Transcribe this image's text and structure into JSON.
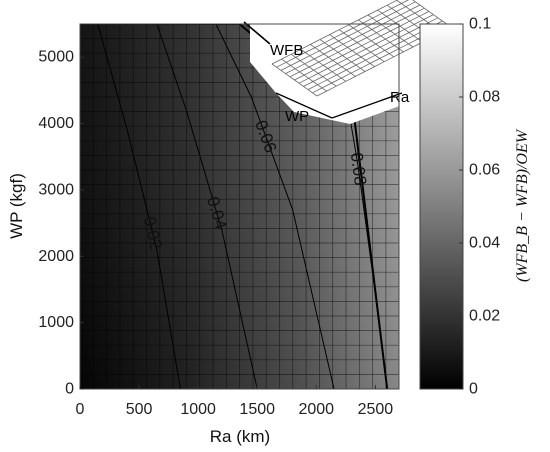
{
  "chart_data": {
    "type": "heatmap",
    "x_variable": "Ra",
    "y_variable": "WP",
    "xlabel": "Ra (km)",
    "ylabel": "WP (kgf)",
    "xlim": [
      0,
      2700
    ],
    "ylim": [
      0,
      5500
    ],
    "xticks": [
      0,
      500,
      1000,
      1500,
      2000,
      2500
    ],
    "yticks": [
      0,
      1000,
      2000,
      3000,
      4000,
      5000
    ],
    "colorbar": {
      "label": "(WFB_B − WFB)/OEW",
      "range": [
        0,
        0.1
      ],
      "ticks": [
        0,
        0.02,
        0.04,
        0.06,
        0.08,
        0.1
      ],
      "colormap": "gray",
      "low_color": "#000000",
      "high_color": "#ffffff"
    },
    "grid": true,
    "contours": [
      {
        "level": 0.02,
        "label": "0.02",
        "points": [
          [
            150,
            5500
          ],
          [
            400,
            3900
          ],
          [
            650,
            2100
          ],
          [
            850,
            0
          ]
        ]
      },
      {
        "level": 0.04,
        "label": "0.04",
        "points": [
          [
            650,
            5500
          ],
          [
            900,
            4200
          ],
          [
            1200,
            2400
          ],
          [
            1500,
            0
          ]
        ]
      },
      {
        "level": 0.06,
        "label": "0.06",
        "points": [
          [
            1150,
            5500
          ],
          [
            1450,
            4400
          ],
          [
            1800,
            2700
          ],
          [
            2150,
            0
          ]
        ]
      },
      {
        "level": 0.08,
        "label": "0.08",
        "points": [
          [
            2250,
            4450
          ],
          [
            2350,
            3400
          ],
          [
            2480,
            1700
          ],
          [
            2600,
            0
          ]
        ]
      }
    ],
    "boundary_line": {
      "points": [
        [
          0,
          5500
        ],
        [
          1350,
          5500
        ],
        [
          1550,
          5200
        ],
        [
          2300,
          4400
        ],
        [
          2430,
          2500
        ],
        [
          2600,
          0
        ]
      ]
    },
    "inset": {
      "type": "3d-surface",
      "axis_labels": {
        "wfb": "WFB",
        "wp": "WP",
        "ra": "Ra"
      }
    }
  }
}
